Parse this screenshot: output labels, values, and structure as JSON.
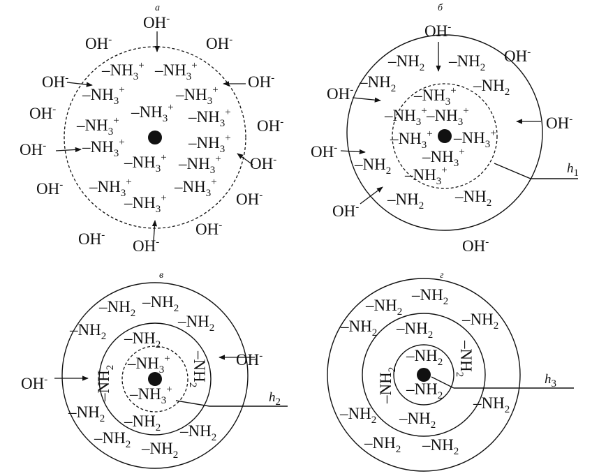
{
  "panel_labels": [
    "а",
    "б",
    "в",
    "г"
  ],
  "species": {
    "hydroxide": "OH",
    "hydroxide_charge": "-",
    "amino_group": "–NH",
    "ammonium_charge": "+",
    "subscript_2": "2",
    "subscript_3": "3"
  },
  "thickness_labels": {
    "h1": {
      "letter": "h",
      "index": "1"
    },
    "h2": {
      "letter": "h",
      "index": "2"
    },
    "h3": {
      "letter": "h",
      "index": "3"
    }
  }
}
